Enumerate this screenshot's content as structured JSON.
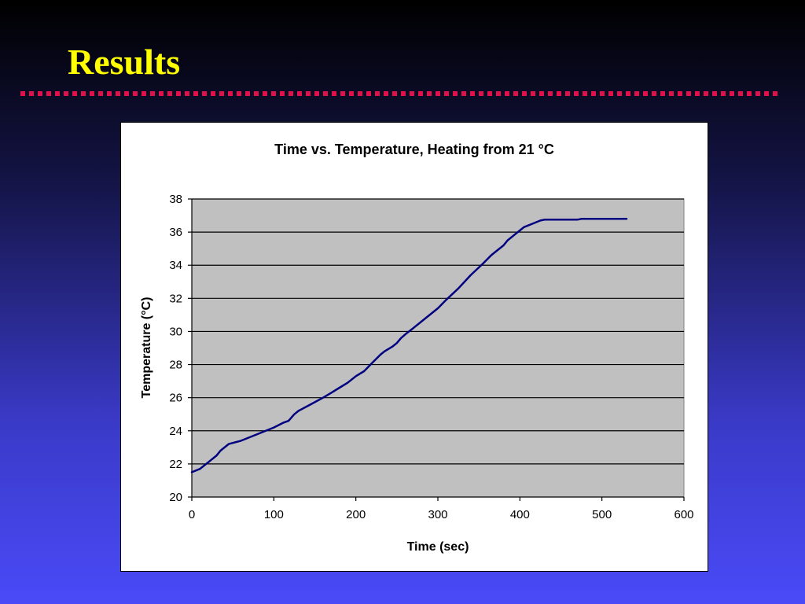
{
  "slide": {
    "title": "Results"
  },
  "colors": {
    "title": "#ffff00",
    "divider": "#e0104a",
    "plot_area": "#c0c0c0",
    "series_line": "#000080"
  },
  "chart_data": {
    "type": "line",
    "title": "Time vs. Temperature, Heating from 21 °C",
    "xlabel": "Time (sec)",
    "ylabel": "Temperature (°C)",
    "xlim": [
      0,
      600
    ],
    "ylim": [
      20,
      38
    ],
    "xticks": [
      0,
      100,
      200,
      300,
      400,
      500,
      600
    ],
    "yticks": [
      20,
      22,
      24,
      26,
      28,
      30,
      32,
      34,
      36,
      38
    ],
    "grid": "horizontal",
    "legend": "none",
    "series": [
      {
        "x": [
          0,
          10,
          20,
          30,
          35,
          45,
          60,
          80,
          100,
          112,
          118,
          125,
          130,
          145,
          160,
          170,
          180,
          190,
          200,
          210,
          220,
          230,
          235,
          245,
          250,
          255,
          262,
          270,
          285,
          300,
          310,
          325,
          340,
          355,
          365,
          370,
          380,
          385,
          395,
          400,
          405,
          415,
          425,
          430,
          470,
          475,
          500,
          530
        ],
        "y": [
          21.5,
          21.7,
          22.1,
          22.5,
          22.8,
          23.2,
          23.4,
          23.8,
          24.2,
          24.5,
          24.6,
          25.0,
          25.2,
          25.6,
          26.0,
          26.3,
          26.6,
          26.9,
          27.3,
          27.6,
          28.1,
          28.6,
          28.8,
          29.1,
          29.3,
          29.6,
          29.9,
          30.2,
          30.8,
          31.4,
          31.9,
          32.6,
          33.4,
          34.1,
          34.6,
          34.8,
          35.2,
          35.5,
          35.9,
          36.1,
          36.3,
          36.5,
          36.7,
          36.75,
          36.75,
          36.8,
          36.8,
          36.8
        ]
      }
    ]
  }
}
